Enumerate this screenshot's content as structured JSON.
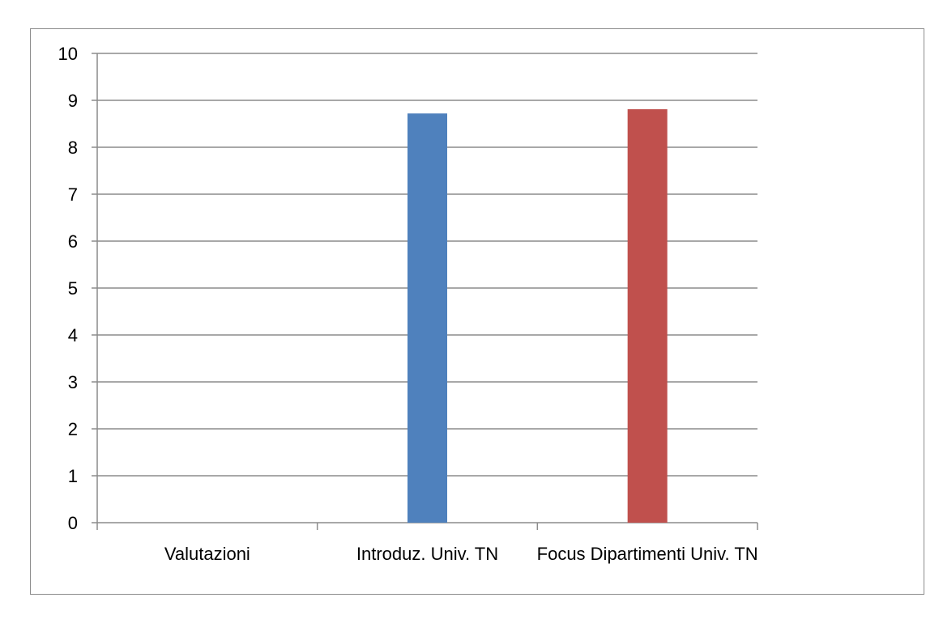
{
  "chart_data": {
    "type": "bar",
    "title": "",
    "xlabel": "",
    "ylabel": "",
    "categories": [
      "Valutazioni",
      "Introduz. Univ. TN",
      "Focus Dipartimenti Univ. TN"
    ],
    "ylim": [
      0,
      10
    ],
    "yticks": [
      0,
      1,
      2,
      3,
      4,
      5,
      6,
      7,
      8,
      9,
      10
    ],
    "grid": true,
    "legend": "none",
    "bars": [
      {
        "category": "Introduz. Univ. TN",
        "value": 8.72,
        "color": "#4f81bd"
      },
      {
        "category": "Focus Dipartimenti Univ. TN",
        "value": 8.81,
        "color": "#c0504d"
      }
    ]
  }
}
